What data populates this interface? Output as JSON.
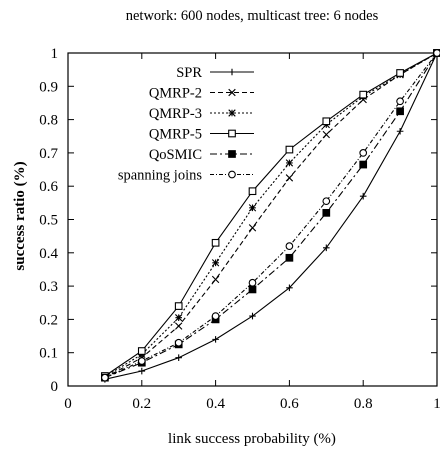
{
  "chart_data": {
    "type": "line",
    "title": "network: 600 nodes, multicast tree: 6 nodes",
    "xlabel": "link success probability (%)",
    "ylabel": "success ratio (%)",
    "xlim": [
      0,
      1
    ],
    "ylim": [
      0,
      1
    ],
    "xticks": [
      0,
      0.2,
      0.4,
      0.6,
      0.8,
      1
    ],
    "xtick_labels": [
      "0",
      "0.2",
      "0.4",
      "0.6",
      "0.8",
      "1"
    ],
    "yticks": [
      0,
      0.1,
      0.2,
      0.3,
      0.4,
      0.5,
      0.6,
      0.7,
      0.8,
      0.9,
      1
    ],
    "ytick_labels": [
      "0",
      "0.1",
      "0.2",
      "0.3",
      "0.4",
      "0.5",
      "0.6",
      "0.7",
      "0.8",
      "0.9",
      "1"
    ],
    "grid": false,
    "legend_position": "top-left inside",
    "x": [
      0.1,
      0.2,
      0.3,
      0.4,
      0.5,
      0.6,
      0.7,
      0.8,
      0.9,
      1.0
    ],
    "series": [
      {
        "name": "SPR",
        "marker": "plus",
        "dash": "solid",
        "values": [
          0.02,
          0.045,
          0.085,
          0.14,
          0.21,
          0.295,
          0.415,
          0.57,
          0.765,
          1.0
        ]
      },
      {
        "name": "QMRP-2",
        "marker": "x",
        "dash": "dashed",
        "values": [
          0.025,
          0.085,
          0.18,
          0.32,
          0.475,
          0.625,
          0.755,
          0.86,
          0.935,
          1.0
        ]
      },
      {
        "name": "QMRP-3",
        "marker": "star",
        "dash": "dotted",
        "values": [
          0.028,
          0.095,
          0.205,
          0.37,
          0.535,
          0.67,
          0.785,
          0.87,
          0.935,
          1.0
        ]
      },
      {
        "name": "QMRP-5",
        "marker": "square-open",
        "dash": "solid",
        "values": [
          0.03,
          0.105,
          0.24,
          0.43,
          0.585,
          0.71,
          0.795,
          0.875,
          0.94,
          1.0
        ]
      },
      {
        "name": "QoSMIC",
        "marker": "square-filled",
        "dash": "dashdot",
        "values": [
          0.025,
          0.07,
          0.125,
          0.2,
          0.29,
          0.385,
          0.52,
          0.665,
          0.825,
          1.0
        ]
      },
      {
        "name": "spanning joins",
        "marker": "circle",
        "dash": "dashdot-fine",
        "values": [
          0.025,
          0.075,
          0.13,
          0.21,
          0.31,
          0.42,
          0.555,
          0.7,
          0.855,
          1.0
        ]
      }
    ]
  }
}
